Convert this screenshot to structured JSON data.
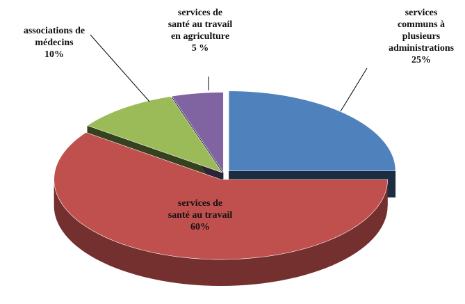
{
  "chart_data": {
    "type": "pie",
    "categories": [
      "services\ncommuns à\nplusieurs\nadministrations",
      "services de\nsanté au travail",
      "associations de\nmédecins",
      "services de\nsanté au travail\nen agriculture"
    ],
    "values": [
      25,
      60,
      10,
      5
    ],
    "value_labels": [
      "25%",
      "60%",
      "10%",
      "5 %"
    ],
    "colors": [
      "#4f81bd",
      "#c0504d",
      "#9bbb59",
      "#8064a2"
    ]
  }
}
